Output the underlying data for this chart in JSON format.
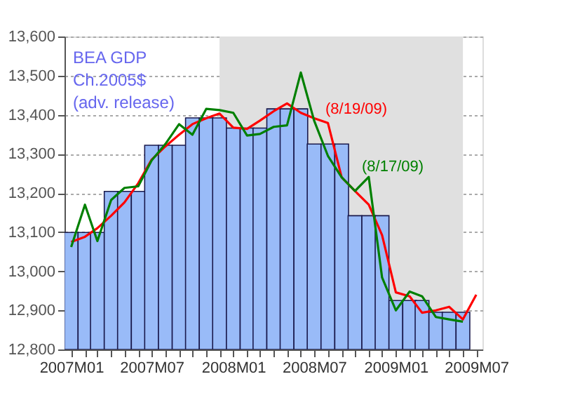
{
  "chart_data": {
    "type": "bar",
    "x": [
      "2007-01",
      "2007-02",
      "2007-03",
      "2007-04",
      "2007-05",
      "2007-06",
      "2007-07",
      "2007-08",
      "2007-09",
      "2007-10",
      "2007-11",
      "2007-12",
      "2008-01",
      "2008-02",
      "2008-03",
      "2008-04",
      "2008-05",
      "2008-06",
      "2008-07",
      "2008-08",
      "2008-09",
      "2008-10",
      "2008-11",
      "2008-12",
      "2009-01",
      "2009-02",
      "2009-03",
      "2009-04",
      "2009-05",
      "2009-06",
      "2009-07"
    ],
    "series": [
      {
        "name": "BEA GDP\nCh.2005$\n(adv. release)",
        "color": "#99bbf8",
        "values": [
          13099,
          13099,
          13099,
          13204,
          13204,
          13204,
          13322,
          13322,
          13322,
          13392,
          13392,
          13392,
          13366,
          13366,
          13366,
          13415,
          13415,
          13415,
          13325,
          13325,
          13325,
          13142,
          13142,
          13142,
          12925,
          12925,
          12925,
          12895,
          12895,
          12895,
          null
        ]
      },
      {
        "name": "(8/19/09)",
        "color": "#ff0000",
        "type": "line",
        "values": [
          13075,
          13088,
          13110,
          13142,
          13176,
          13225,
          13285,
          13319,
          13349,
          13376,
          13391,
          13403,
          13367,
          13364,
          13385,
          13409,
          13429,
          13405,
          13391,
          13379,
          13240,
          13205,
          13170,
          13092,
          12946,
          12936,
          12894,
          12900,
          12909,
          12877,
          12940
        ]
      },
      {
        "name": "(8/17/09)",
        "color": "#008000",
        "type": "line",
        "values": [
          13062,
          13170,
          13077,
          13182,
          13213,
          13217,
          13283,
          13325,
          13376,
          13349,
          13415,
          13412,
          13405,
          13347,
          13351,
          13369,
          13373,
          13508,
          13385,
          13295,
          13240,
          13205,
          13241,
          12984,
          12900,
          12948,
          12936,
          12883,
          12877,
          12871,
          null
        ]
      }
    ],
    "xlim": [
      "2006-12-17",
      "2009-07-15"
    ],
    "xticks": [
      {
        "value": "2007-01",
        "label": "2007M01"
      },
      {
        "value": "2007-02",
        "label": null
      },
      {
        "value": "2007-03",
        "label": null
      },
      {
        "value": "2007-04",
        "label": null
      },
      {
        "value": "2007-05",
        "label": null
      },
      {
        "value": "2007-06",
        "label": null
      },
      {
        "value": "2007-07",
        "label": "2007M07"
      },
      {
        "value": "2007-08",
        "label": null
      },
      {
        "value": "2007-09",
        "label": null
      },
      {
        "value": "2007-10",
        "label": null
      },
      {
        "value": "2007-11",
        "label": null
      },
      {
        "value": "2007-12",
        "label": null
      },
      {
        "value": "2008-01",
        "label": "2008M01"
      },
      {
        "value": "2008-02",
        "label": null
      },
      {
        "value": "2008-03",
        "label": null
      },
      {
        "value": "2008-04",
        "label": null
      },
      {
        "value": "2008-05",
        "label": null
      },
      {
        "value": "2008-06",
        "label": null
      },
      {
        "value": "2008-07",
        "label": "2008M07"
      },
      {
        "value": "2008-08",
        "label": null
      },
      {
        "value": "2008-09",
        "label": null
      },
      {
        "value": "2008-10",
        "label": null
      },
      {
        "value": "2008-11",
        "label": null
      },
      {
        "value": "2008-12",
        "label": null
      },
      {
        "value": "2009-01",
        "label": "2009M01"
      },
      {
        "value": "2009-02",
        "label": null
      },
      {
        "value": "2009-03",
        "label": null
      },
      {
        "value": "2009-04",
        "label": null
      },
      {
        "value": "2009-05",
        "label": null
      },
      {
        "value": "2009-06",
        "label": null
      },
      {
        "value": "2009-07",
        "label": "2009M07"
      }
    ],
    "ylim": [
      12800,
      13600
    ],
    "yticks": [
      {
        "value": 12800,
        "label": "12,800"
      },
      {
        "value": 12900,
        "label": "12,900"
      },
      {
        "value": 13000,
        "label": "13,000"
      },
      {
        "value": 13100,
        "label": "13,100"
      },
      {
        "value": 13200,
        "label": "13,200"
      },
      {
        "value": 13300,
        "label": "13,300"
      },
      {
        "value": 13400,
        "label": "13,400"
      },
      {
        "value": 13500,
        "label": "13,500"
      },
      {
        "value": 13600,
        "label": "13,600"
      }
    ],
    "bands": [
      {
        "axis": "x",
        "from": "2007-12",
        "to": "2009-06",
        "color": "#e0e0e0"
      }
    ],
    "grid": "y",
    "legend": false,
    "marker": "none",
    "line_style": "solid"
  }
}
